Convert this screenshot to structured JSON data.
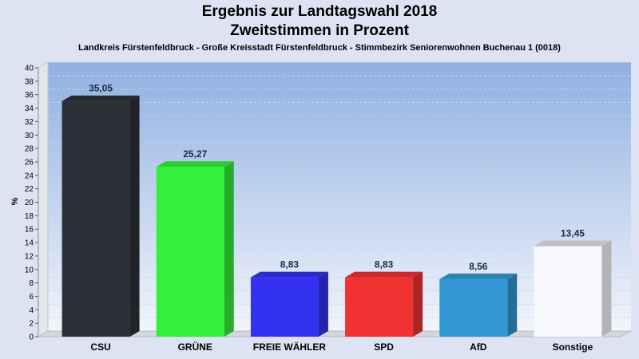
{
  "chart_data": {
    "type": "bar",
    "title": "Ergebnis zur Landtagswahl 2018",
    "subtitle": "Zweitstimmen in Prozent",
    "caption": "Landkreis Fürstenfeldbruck - Große Kreisstadt Fürstenfeldbruck - Stimmbezirk Seniorenwohnen Buchenau 1 (0018)",
    "ylabel": "%",
    "xlabel": "",
    "ylim": [
      0,
      40
    ],
    "ytick_step": 2,
    "grid": true,
    "categories": [
      "CSU",
      "GRÜNE",
      "FREIE WÄHLER",
      "SPD",
      "AfD",
      "Sonstige"
    ],
    "values": [
      35.05,
      25.27,
      8.83,
      8.83,
      8.56,
      13.45
    ],
    "value_labels": [
      "35,05",
      "25,27",
      "8,83",
      "8,83",
      "8,56",
      "13,45"
    ],
    "colors": [
      "#2d3036",
      "#33f03a",
      "#3232f0",
      "#f03232",
      "#3299d4",
      "#f7f8fc"
    ]
  }
}
